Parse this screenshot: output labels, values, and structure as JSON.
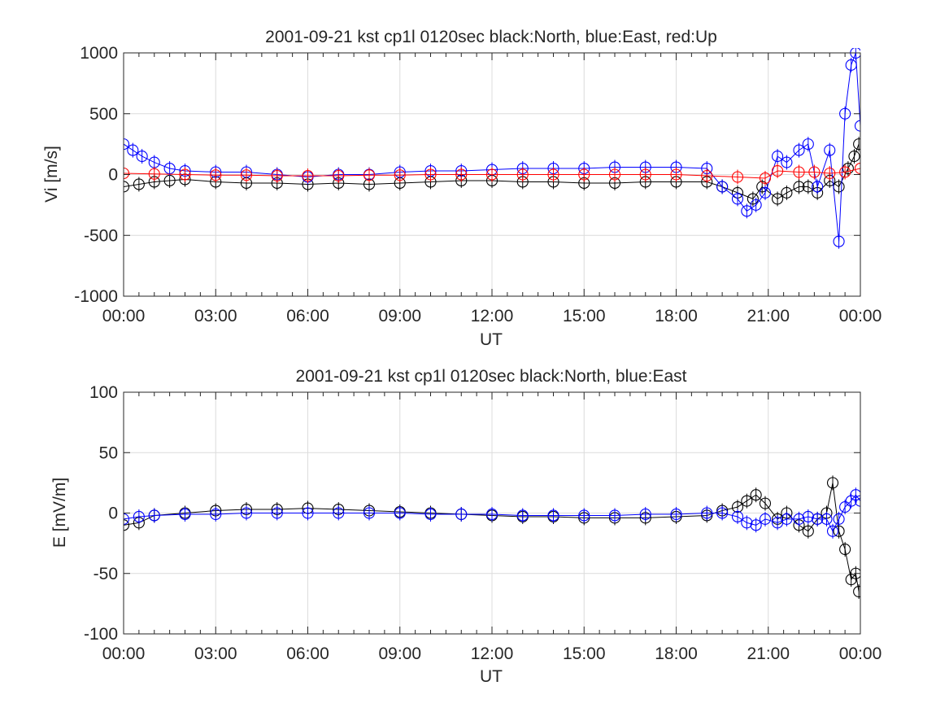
{
  "chart_data": [
    {
      "type": "scatter",
      "title": "2001-09-21 kst cp1l 0120sec black:North, blue:East, red:Up",
      "xlabel": "UT",
      "ylabel": "Vi [m/s]",
      "ylim": [
        -1000,
        1000
      ],
      "yticks": [
        "1000",
        "500",
        "0",
        "-500",
        "-1000"
      ],
      "xlim_hours": [
        0,
        24
      ],
      "xticks": [
        "00:00",
        "03:00",
        "06:00",
        "09:00",
        "12:00",
        "15:00",
        "18:00",
        "21:00",
        "00:00"
      ],
      "grid": true,
      "series": [
        {
          "name": "North",
          "color": "#000000",
          "x_hours": [
            0,
            0.5,
            1,
            1.5,
            2,
            3,
            4,
            5,
            6,
            7,
            8,
            9,
            10,
            11,
            12,
            13,
            14,
            15,
            16,
            17,
            18,
            19,
            19.5,
            20,
            20.5,
            20.8,
            21.3,
            21.6,
            22,
            22.3,
            22.6,
            23,
            23.3,
            23.6,
            23.8,
            23.95
          ],
          "values": [
            -100,
            -80,
            -60,
            -50,
            -40,
            -60,
            -70,
            -70,
            -80,
            -70,
            -80,
            -70,
            -60,
            -50,
            -50,
            -60,
            -60,
            -70,
            -70,
            -60,
            -60,
            -60,
            -100,
            -150,
            -200,
            -100,
            -200,
            -150,
            -100,
            -100,
            -150,
            -50,
            -100,
            50,
            150,
            250
          ]
        },
        {
          "name": "East",
          "color": "#0000ff",
          "x_hours": [
            0,
            0.3,
            0.6,
            1,
            1.5,
            2,
            3,
            4,
            5,
            6,
            7,
            8,
            9,
            10,
            11,
            12,
            13,
            14,
            15,
            16,
            17,
            18,
            19,
            19.5,
            20,
            20.3,
            20.6,
            20.9,
            21.3,
            21.6,
            22,
            22.3,
            22.6,
            23,
            23.3,
            23.5,
            23.7,
            23.85,
            24
          ],
          "values": [
            250,
            200,
            150,
            100,
            50,
            30,
            20,
            20,
            0,
            -20,
            0,
            0,
            20,
            30,
            30,
            40,
            50,
            50,
            50,
            60,
            60,
            60,
            50,
            -100,
            -200,
            -300,
            -250,
            -150,
            150,
            100,
            200,
            250,
            -100,
            200,
            -550,
            500,
            900,
            1000,
            400
          ]
        },
        {
          "name": "Up",
          "color": "#ff0000",
          "x_hours": [
            0,
            1,
            2,
            3,
            4,
            5,
            6,
            7,
            8,
            9,
            10,
            11,
            12,
            13,
            14,
            15,
            16,
            17,
            18,
            19,
            20,
            20.9,
            21.3,
            22,
            22.5,
            23,
            23.5,
            24
          ],
          "values": [
            10,
            5,
            0,
            -5,
            -5,
            -10,
            -10,
            -10,
            -5,
            -5,
            0,
            0,
            0,
            0,
            0,
            0,
            0,
            0,
            0,
            -10,
            -20,
            -30,
            30,
            20,
            20,
            10,
            20,
            50
          ]
        }
      ]
    },
    {
      "type": "scatter",
      "title": "2001-09-21 kst cp1l 0120sec black:North, blue:East",
      "xlabel": "UT",
      "ylabel": "E [mV/m]",
      "ylim": [
        -100,
        100
      ],
      "yticks": [
        "100",
        "50",
        "0",
        "-50",
        "-100"
      ],
      "xlim_hours": [
        0,
        24
      ],
      "xticks": [
        "00:00",
        "03:00",
        "06:00",
        "09:00",
        "12:00",
        "15:00",
        "18:00",
        "21:00",
        "00:00"
      ],
      "grid": true,
      "series": [
        {
          "name": "North",
          "color": "#000000",
          "x_hours": [
            0,
            0.5,
            1,
            2,
            3,
            4,
            5,
            6,
            7,
            8,
            9,
            10,
            11,
            12,
            13,
            14,
            15,
            16,
            17,
            18,
            19,
            19.5,
            20,
            20.3,
            20.6,
            20.9,
            21.3,
            21.6,
            22,
            22.3,
            22.6,
            22.9,
            23.1,
            23.3,
            23.5,
            23.7,
            23.85,
            23.95
          ],
          "values": [
            -10,
            -8,
            -2,
            0,
            2,
            3,
            3,
            4,
            3,
            2,
            1,
            0,
            -1,
            -2,
            -3,
            -3,
            -4,
            -4,
            -4,
            -3,
            -2,
            2,
            5,
            10,
            15,
            8,
            -5,
            0,
            -10,
            -15,
            -5,
            0,
            25,
            -15,
            -30,
            -55,
            -50,
            -65
          ]
        },
        {
          "name": "East",
          "color": "#0000ff",
          "x_hours": [
            0,
            0.5,
            1,
            2,
            3,
            4,
            5,
            6,
            7,
            8,
            9,
            10,
            11,
            12,
            13,
            14,
            15,
            16,
            17,
            18,
            19,
            19.5,
            20,
            20.3,
            20.6,
            20.9,
            21.3,
            21.6,
            22,
            22.3,
            22.6,
            22.9,
            23.1,
            23.3,
            23.5,
            23.7,
            23.85,
            24
          ],
          "values": [
            -5,
            -3,
            -2,
            -1,
            -1,
            0,
            0,
            0,
            0,
            0,
            0,
            -1,
            -1,
            -1,
            -2,
            -2,
            -2,
            -2,
            -1,
            -1,
            0,
            0,
            -3,
            -8,
            -10,
            -5,
            -8,
            -5,
            -5,
            -3,
            -5,
            -5,
            -15,
            -5,
            5,
            10,
            15,
            10
          ]
        }
      ]
    }
  ]
}
